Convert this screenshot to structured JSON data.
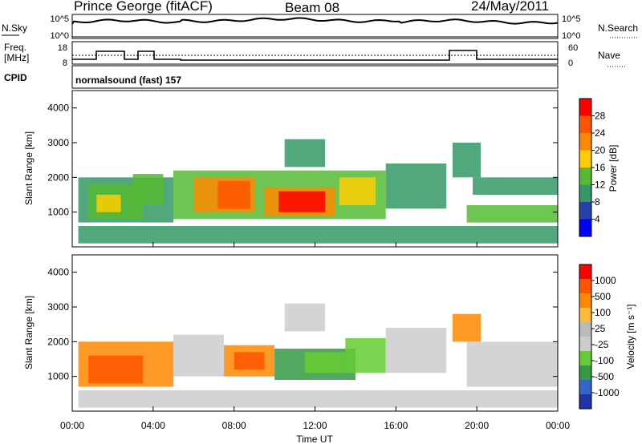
{
  "header": {
    "station": "Prince George (fitACF)",
    "beam": "Beam 08",
    "date": "24/May/2011"
  },
  "sky_panel": {
    "left_label": "N.Sky",
    "right_label": "N.Search",
    "left_ticks": [
      "10^5",
      "10^0"
    ],
    "right_ticks": [
      "10^5",
      "10^0"
    ]
  },
  "freq_panel": {
    "left_label_1": "Freq.",
    "left_label_2": "[MHz]",
    "right_label": "Nave",
    "left_ticks": [
      "18",
      "8"
    ],
    "right_ticks": [
      "60",
      "0"
    ]
  },
  "cpid_panel": {
    "label": "CPID",
    "text": "normalsound (fast) 157"
  },
  "colors": {
    "power": [
      "#0000ff",
      "#2244aa",
      "#339966",
      "#55bb33",
      "#ffcc00",
      "#ff8800",
      "#ff5500",
      "#ff0000"
    ],
    "velocity": [
      "#2233aa",
      "#3366cc",
      "#339944",
      "#66cc33",
      "#cccccc",
      "#bbbbbb",
      "#ffbb33",
      "#ff8800",
      "#ff5500",
      "#ff0000"
    ]
  },
  "chart_data": [
    {
      "type": "heatmap",
      "name": "power",
      "xlabel": "Time UT",
      "ylabel": "Slant Range [km]",
      "xticks": [
        "00:00",
        "04:00",
        "08:00",
        "12:00",
        "16:00",
        "20:00",
        "00:00"
      ],
      "yticks": [
        "1000",
        "2000",
        "3000",
        "4000"
      ],
      "xlim": [
        0,
        24
      ],
      "ylim": [
        0,
        4500
      ],
      "colorbar_label": "Power [dB]",
      "colorbar_ticks": [
        "28",
        "24",
        "20",
        "16",
        "12",
        "8",
        "4"
      ],
      "regions": [
        {
          "t0": 0.3,
          "t1": 24,
          "r0": 100,
          "r1": 600,
          "level": 2
        },
        {
          "t0": 0.3,
          "t1": 5,
          "r0": 700,
          "r1": 2000,
          "level": 2
        },
        {
          "t0": 0.8,
          "t1": 3.5,
          "r0": 800,
          "r1": 1800,
          "level": 3
        },
        {
          "t0": 1.2,
          "t1": 2.4,
          "r0": 1000,
          "r1": 1500,
          "level": 4
        },
        {
          "t0": 3,
          "t1": 4.5,
          "r0": 1200,
          "r1": 2100,
          "level": 3
        },
        {
          "t0": 5,
          "t1": 15.5,
          "r0": 800,
          "r1": 2200,
          "level": 3
        },
        {
          "t0": 6,
          "t1": 9,
          "r0": 1000,
          "r1": 2000,
          "level": 5
        },
        {
          "t0": 7.2,
          "t1": 8.8,
          "r0": 1100,
          "r1": 1900,
          "level": 6
        },
        {
          "t0": 9.5,
          "t1": 13,
          "r0": 900,
          "r1": 1700,
          "level": 5
        },
        {
          "t0": 10.2,
          "t1": 12.5,
          "r0": 1000,
          "r1": 1600,
          "level": 7
        },
        {
          "t0": 13.2,
          "t1": 15,
          "r0": 1200,
          "r1": 2000,
          "level": 4
        },
        {
          "t0": 10.5,
          "t1": 12.5,
          "r0": 2300,
          "r1": 3100,
          "level": 2
        },
        {
          "t0": 15.5,
          "t1": 18.5,
          "r0": 1100,
          "r1": 2400,
          "level": 2
        },
        {
          "t0": 18.8,
          "t1": 20.2,
          "r0": 2000,
          "r1": 3000,
          "level": 2
        },
        {
          "t0": 19.5,
          "t1": 24,
          "r0": 700,
          "r1": 1200,
          "level": 3
        },
        {
          "t0": 19.8,
          "t1": 24,
          "r0": 1500,
          "r1": 2000,
          "level": 2
        }
      ]
    },
    {
      "type": "heatmap",
      "name": "velocity",
      "xlabel": "Time UT",
      "ylabel": "Slant Range [km]",
      "xticks": [
        "00:00",
        "04:00",
        "08:00",
        "12:00",
        "16:00",
        "20:00",
        "00:00"
      ],
      "yticks": [
        "1000",
        "2000",
        "3000",
        "4000"
      ],
      "xlim": [
        0,
        24
      ],
      "ylim": [
        0,
        4500
      ],
      "colorbar_label": "Velocity [m s⁻¹]",
      "colorbar_ticks": [
        "1000",
        "500",
        "100",
        "25",
        "-25",
        "-100",
        "-500",
        "-1000"
      ],
      "regions": [
        {
          "t0": 0.3,
          "t1": 24,
          "r0": 100,
          "r1": 600,
          "level": 4
        },
        {
          "t0": 0.3,
          "t1": 5,
          "r0": 700,
          "r1": 2000,
          "level": 7
        },
        {
          "t0": 0.8,
          "t1": 3.5,
          "r0": 800,
          "r1": 1600,
          "level": 8
        },
        {
          "t0": 5,
          "t1": 7.5,
          "r0": 1000,
          "r1": 2200,
          "level": 4
        },
        {
          "t0": 7.5,
          "t1": 10,
          "r0": 1000,
          "r1": 1900,
          "level": 7
        },
        {
          "t0": 8,
          "t1": 9.5,
          "r0": 1200,
          "r1": 1700,
          "level": 8
        },
        {
          "t0": 10,
          "t1": 14,
          "r0": 900,
          "r1": 1800,
          "level": 2
        },
        {
          "t0": 11.5,
          "t1": 13.5,
          "r0": 1100,
          "r1": 1700,
          "level": 3
        },
        {
          "t0": 13.5,
          "t1": 15.5,
          "r0": 1100,
          "r1": 2100,
          "level": 3
        },
        {
          "t0": 15.5,
          "t1": 18.5,
          "r0": 1100,
          "r1": 2400,
          "level": 4
        },
        {
          "t0": 10.5,
          "t1": 12.5,
          "r0": 2300,
          "r1": 3100,
          "level": 4
        },
        {
          "t0": 18.8,
          "t1": 20.2,
          "r0": 2000,
          "r1": 2800,
          "level": 7
        },
        {
          "t0": 19.5,
          "t1": 24,
          "r0": 700,
          "r1": 2000,
          "level": 4
        }
      ]
    }
  ]
}
